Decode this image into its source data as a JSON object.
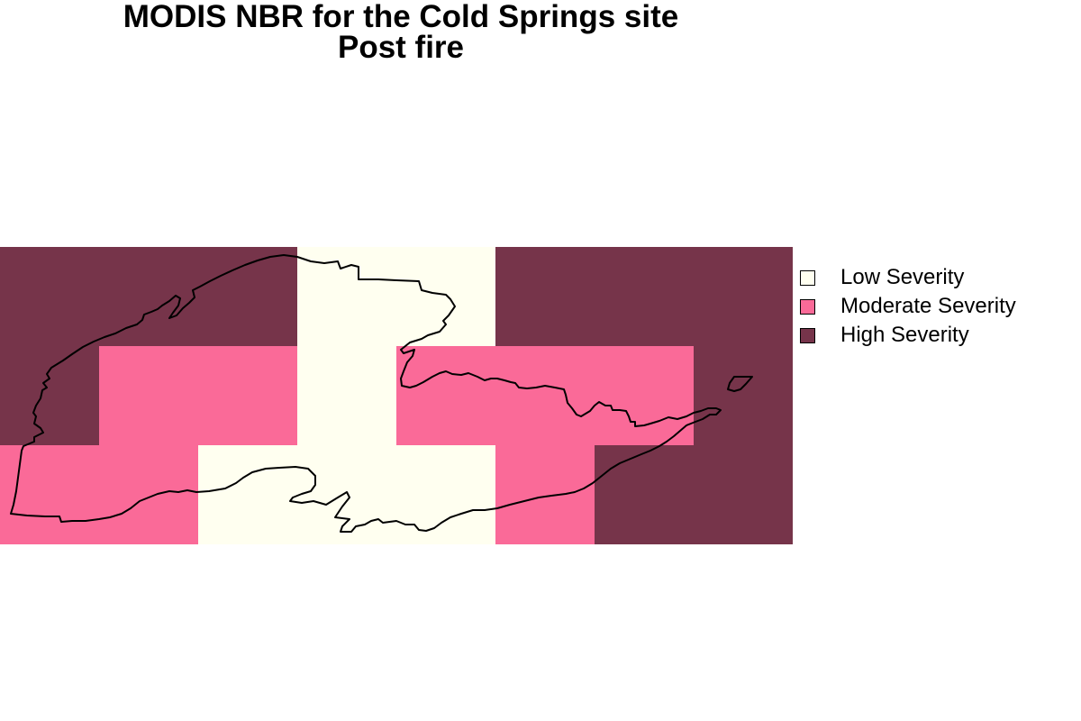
{
  "title": {
    "line1": "MODIS NBR for the Cold Springs site",
    "line2": "Post fire"
  },
  "legend": {
    "items": [
      {
        "label": "Low Severity",
        "color": "#fffff0"
      },
      {
        "label": "Moderate Severity",
        "color": "#fa6a98"
      },
      {
        "label": "High Severity",
        "color": "#76344a"
      }
    ]
  },
  "raster": {
    "class_colors": [
      "#fffff0",
      "#fa6a98",
      "#76344a"
    ],
    "grid": [
      [
        2,
        2,
        2,
        0,
        0,
        2,
        2,
        2
      ],
      [
        2,
        1,
        1,
        0,
        1,
        1,
        1,
        2
      ],
      [
        1,
        1,
        0,
        0,
        0,
        1,
        2,
        2
      ]
    ]
  },
  "boundary": {
    "stroke_color": "#000000"
  }
}
